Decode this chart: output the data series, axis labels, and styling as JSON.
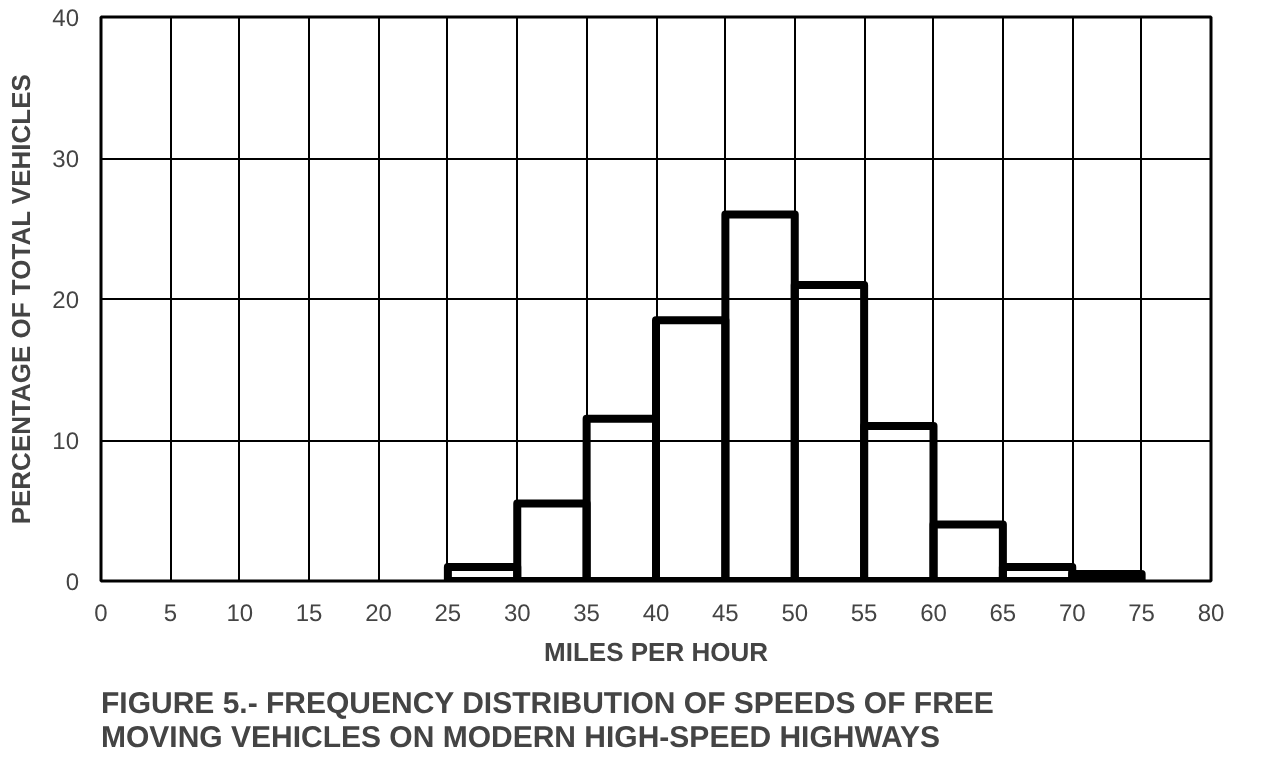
{
  "chart_data": {
    "type": "histogram",
    "title": "FIGURE 5.- FREQUENCY DISTRIBUTION OF SPEEDS OF FREE\nMOVING VEHICLES ON MODERN HIGH-SPEED HIGHWAYS",
    "xlabel": "MILES PER HOUR",
    "ylabel": "PERCENTAGE OF TOTAL VEHICLES",
    "bins": [
      25,
      30,
      35,
      40,
      45,
      50,
      55,
      60,
      65,
      70,
      75
    ],
    "values": [
      1,
      5.5,
      11.5,
      18.5,
      26,
      21,
      11,
      4,
      1,
      0.5
    ],
    "color": "#000000",
    "xlim": [
      0,
      80
    ],
    "xticks": [
      0,
      5,
      10,
      15,
      20,
      25,
      30,
      35,
      40,
      45,
      50,
      55,
      60,
      65,
      70,
      75,
      80
    ],
    "ylim": [
      0,
      40
    ],
    "yticks": [
      0,
      10,
      20,
      30,
      40
    ],
    "grid": true
  }
}
